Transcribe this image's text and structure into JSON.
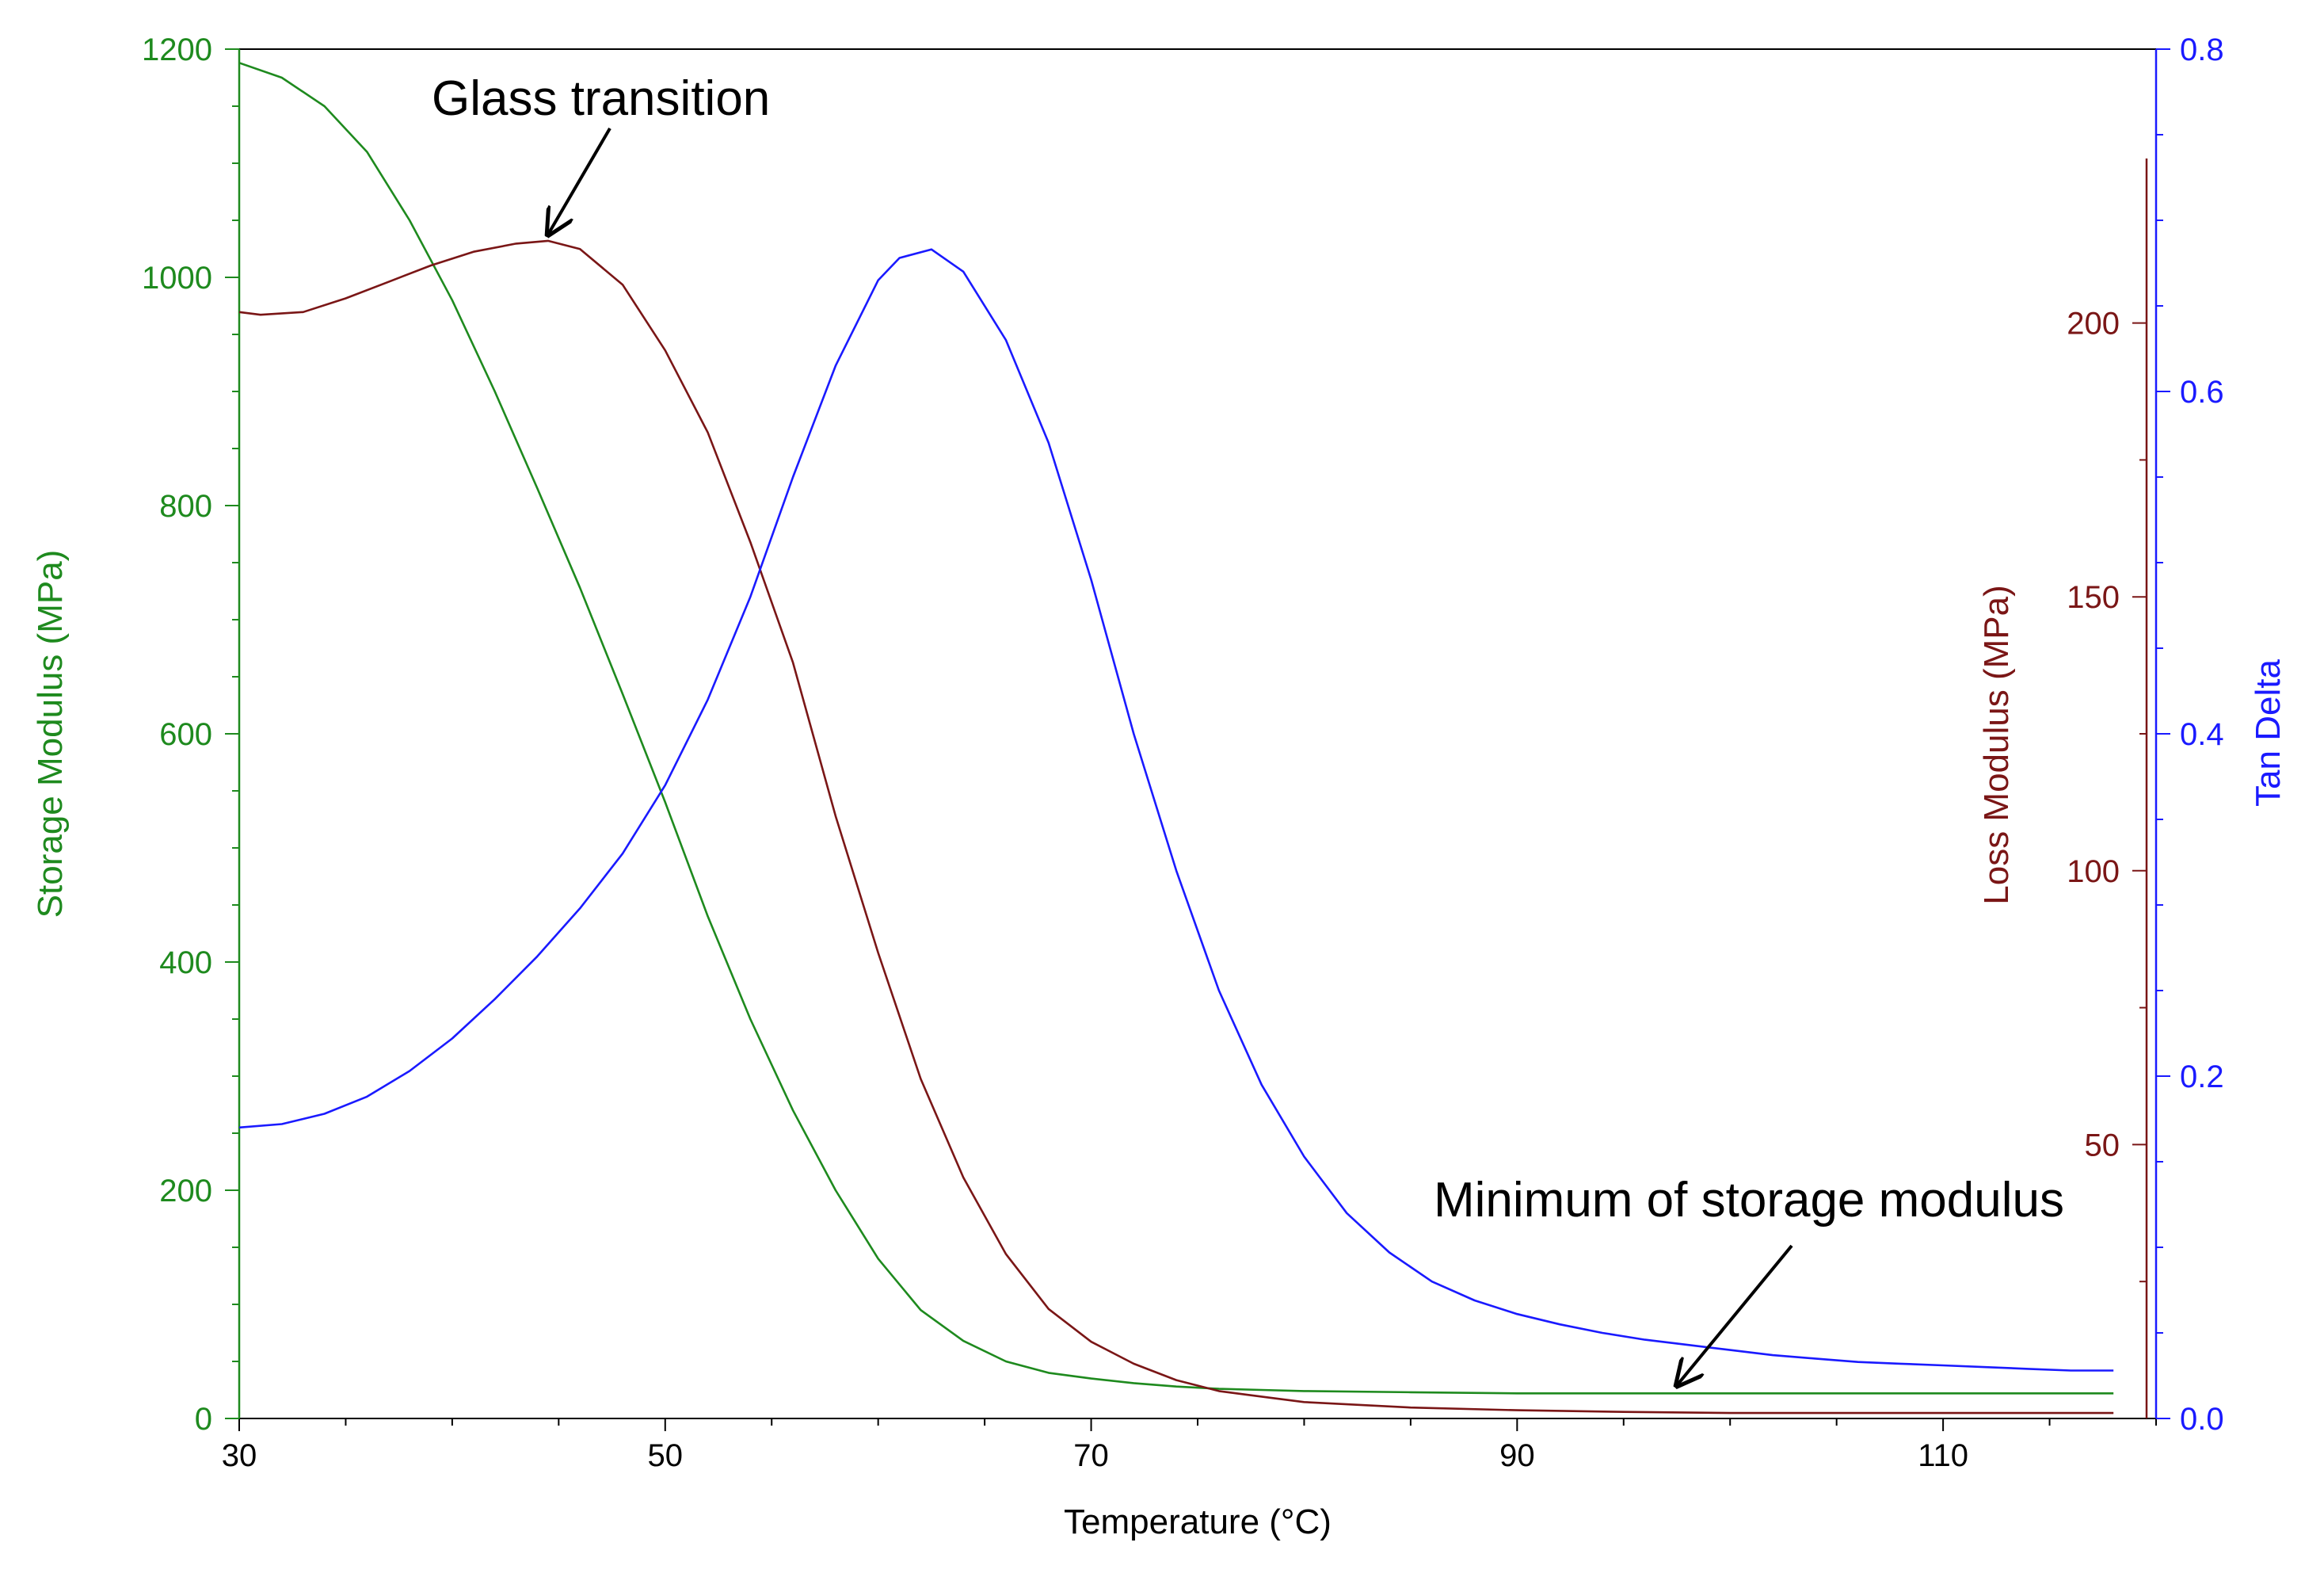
{
  "chart_data": {
    "type": "line",
    "title": "",
    "xlabel": "Temperature (°C)",
    "xlim": [
      30,
      120
    ],
    "x_ticks": [
      30,
      50,
      70,
      90,
      110
    ],
    "colors": {
      "storage": "#1e8a1e",
      "loss": "#7a1616",
      "tan": "#1a1aff",
      "axis": "#000000"
    },
    "axes": {
      "storage": {
        "label": "Storage Modulus (MPa)",
        "ylim": [
          0,
          1200
        ],
        "ticks": [
          0,
          200,
          400,
          600,
          800,
          1000,
          1200
        ]
      },
      "loss": {
        "label": "Loss Modulus (MPa)",
        "ylim": [
          0,
          250
        ],
        "ticks": [
          50,
          100,
          150,
          200
        ]
      },
      "tan": {
        "label": "Tan Delta",
        "ylim": [
          0,
          0.8
        ],
        "ticks": [
          0.0,
          0.2,
          0.4,
          0.6,
          0.8
        ],
        "tick_labels": [
          "0.0",
          "0.2",
          "0.4",
          "0.6",
          "0.8"
        ]
      }
    },
    "series": [
      {
        "name": "Storage Modulus",
        "axis": "storage",
        "x": [
          30,
          32,
          34,
          36,
          38,
          40,
          42,
          44,
          46,
          48,
          50,
          52,
          54,
          56,
          58,
          60,
          62,
          64,
          66,
          68,
          70,
          72,
          74,
          76,
          78,
          80,
          85,
          90,
          95,
          100,
          105,
          110,
          115,
          118
        ],
        "y": [
          1188,
          1175,
          1150,
          1110,
          1050,
          980,
          900,
          815,
          728,
          635,
          540,
          440,
          350,
          270,
          200,
          140,
          95,
          68,
          50,
          40,
          35,
          31,
          28,
          26,
          25,
          24,
          23,
          22,
          22,
          22,
          22,
          22,
          22,
          22
        ]
      },
      {
        "name": "Loss Modulus",
        "axis": "loss",
        "x": [
          30,
          31,
          33,
          35,
          37,
          39,
          41,
          43,
          44.5,
          46,
          48,
          50,
          52,
          54,
          56,
          58,
          60,
          62,
          64,
          66,
          68,
          70,
          72,
          74,
          76,
          78,
          80,
          85,
          90,
          95,
          100,
          105,
          110,
          118
        ],
        "y": [
          202,
          201.5,
          202,
          204.5,
          207.5,
          210.5,
          213,
          214.5,
          215,
          213.5,
          207,
          195,
          180,
          160,
          138,
          110,
          85,
          62,
          44,
          30,
          20,
          14,
          10,
          7,
          5,
          4,
          3,
          2,
          1.5,
          1.2,
          1,
          1,
          1,
          1
        ]
      },
      {
        "name": "Tan Delta",
        "axis": "tan",
        "x": [
          30,
          32,
          34,
          36,
          38,
          40,
          42,
          44,
          46,
          48,
          50,
          52,
          54,
          56,
          58,
          60,
          61,
          62.5,
          64,
          66,
          68,
          70,
          72,
          74,
          76,
          78,
          80,
          82,
          84,
          86,
          88,
          90,
          92,
          94,
          96,
          98,
          100,
          102,
          104,
          106,
          108,
          110,
          112,
          114,
          116,
          118
        ],
        "y": [
          0.17,
          0.172,
          0.178,
          0.188,
          0.203,
          0.222,
          0.245,
          0.27,
          0.298,
          0.33,
          0.37,
          0.42,
          0.48,
          0.55,
          0.615,
          0.665,
          0.678,
          0.683,
          0.67,
          0.63,
          0.57,
          0.49,
          0.4,
          0.32,
          0.25,
          0.195,
          0.153,
          0.12,
          0.097,
          0.08,
          0.069,
          0.061,
          0.055,
          0.05,
          0.046,
          0.043,
          0.04,
          0.037,
          0.035,
          0.033,
          0.032,
          0.031,
          0.03,
          0.029,
          0.028,
          0.028
        ]
      }
    ],
    "annotations": [
      {
        "text": "Glass transition",
        "target": {
          "axis": "loss",
          "x": 44.5,
          "y": 215
        }
      },
      {
        "text": "Minimum of storage modulus",
        "target": {
          "axis": "storage",
          "x": 97.5,
          "y": 22
        }
      }
    ]
  }
}
